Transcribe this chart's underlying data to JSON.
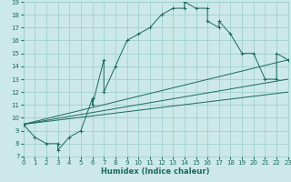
{
  "xlabel": "Humidex (Indice chaleur)",
  "xlim": [
    0,
    23
  ],
  "ylim": [
    7,
    19
  ],
  "xticks": [
    0,
    1,
    2,
    3,
    4,
    5,
    6,
    7,
    8,
    9,
    10,
    11,
    12,
    13,
    14,
    15,
    16,
    17,
    18,
    19,
    20,
    21,
    22,
    23
  ],
  "yticks": [
    7,
    8,
    9,
    10,
    11,
    12,
    13,
    14,
    15,
    16,
    17,
    18,
    19
  ],
  "bg_color": "#cce8e8",
  "line_color": "#1a6b5a",
  "grid_color": "#99cccc",
  "curve1_x": [
    0,
    1,
    2,
    3,
    3,
    4,
    5,
    5,
    6,
    6,
    7,
    7,
    8,
    9,
    10,
    11,
    12,
    13,
    14,
    14,
    15,
    16,
    16,
    17,
    17,
    18,
    19,
    20,
    21,
    22,
    22,
    23
  ],
  "curve1_y": [
    9.5,
    8.5,
    8.0,
    8.0,
    7.5,
    8.5,
    9.0,
    9.0,
    11.5,
    11.0,
    14.5,
    12.0,
    14.0,
    16.0,
    16.5,
    17.0,
    18.0,
    18.5,
    18.5,
    19.0,
    18.5,
    18.5,
    17.5,
    17.0,
    17.5,
    16.5,
    15.0,
    15.0,
    13.0,
    13.0,
    15.0,
    14.5
  ],
  "line2_x": [
    0,
    23
  ],
  "line2_y": [
    9.5,
    14.5
  ],
  "line3_x": [
    0,
    23
  ],
  "line3_y": [
    9.5,
    13.0
  ],
  "line4_x": [
    0,
    23
  ],
  "line4_y": [
    9.5,
    12.0
  ],
  "font_size_axis": 6,
  "font_size_ticks": 5
}
